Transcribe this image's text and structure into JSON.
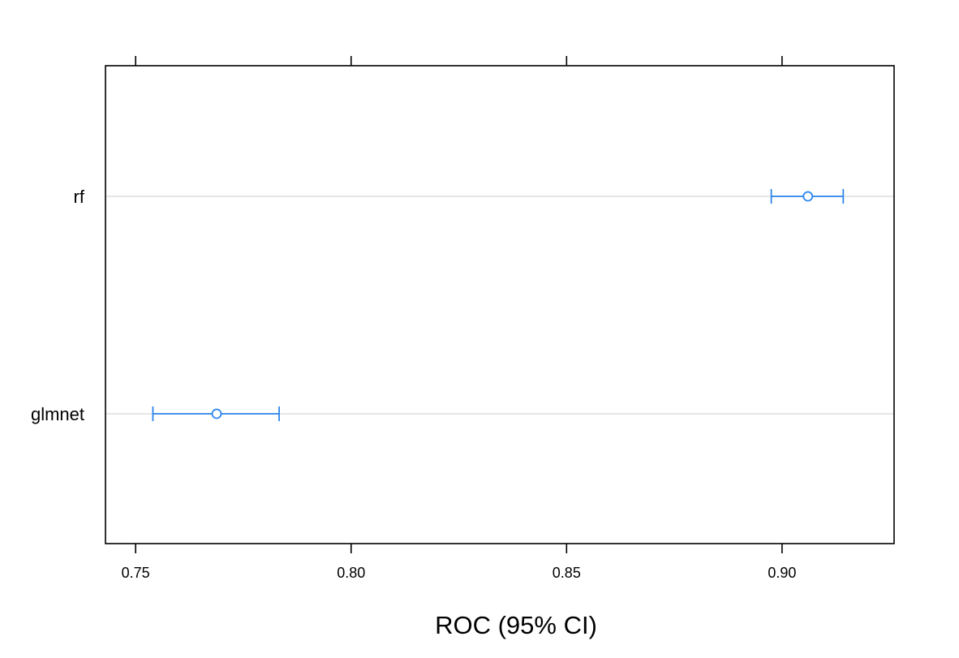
{
  "chart_data": {
    "type": "dot-interval",
    "title": "",
    "xlabel": "ROC (95% CI)",
    "ylabel": "",
    "xlim": [
      0.743,
      0.926
    ],
    "x_ticks": [
      0.75,
      0.8,
      0.85,
      0.9
    ],
    "x_tick_labels": [
      "0.75",
      "0.80",
      "0.85",
      "0.90"
    ],
    "top_ticks": true,
    "categories": [
      "rf",
      "glmnet"
    ],
    "series": [
      {
        "points": [
          {
            "category": "rf",
            "estimate": 0.906,
            "lower": 0.8975,
            "upper": 0.9142
          },
          {
            "category": "glmnet",
            "estimate": 0.7688,
            "lower": 0.754,
            "upper": 0.7833
          }
        ],
        "color": "#2c86ee"
      }
    ],
    "grid": "horizontal reference lines at each category",
    "gridline_color": "#e6e6e6",
    "legend": "none"
  }
}
